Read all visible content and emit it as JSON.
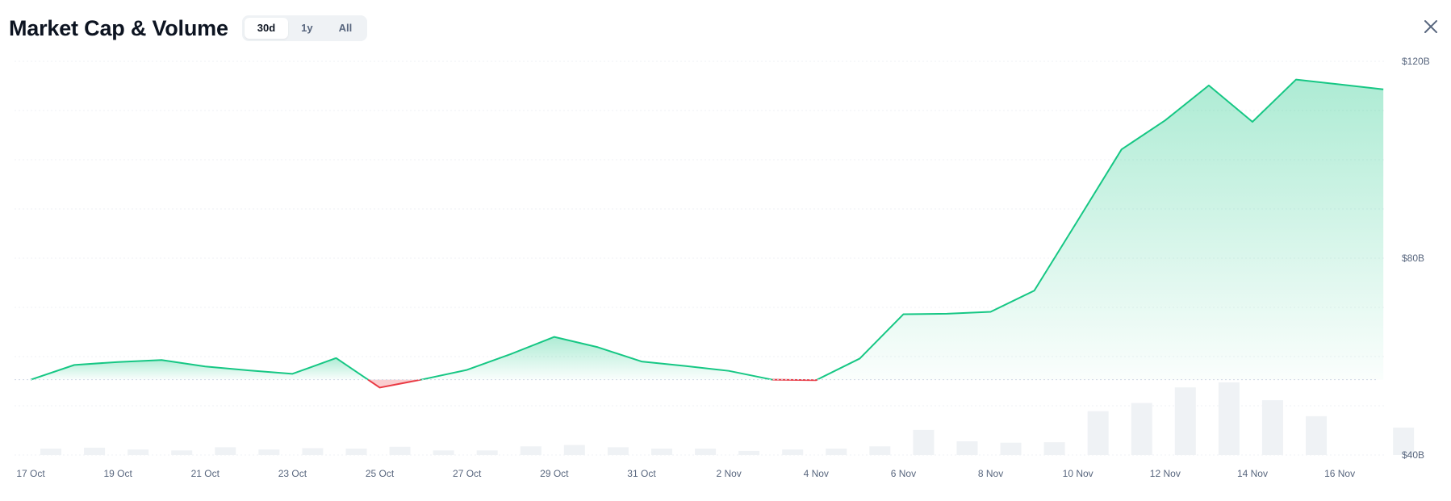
{
  "header": {
    "title": "Market Cap & Volume",
    "tabs": [
      {
        "label": "30d",
        "active": true
      },
      {
        "label": "1y",
        "active": false
      },
      {
        "label": "All",
        "active": false
      }
    ],
    "close_icon": "close-icon"
  },
  "colors": {
    "line_up": "#16c784",
    "line_down": "#ea3943",
    "volume_bar": "#eff2f5",
    "grid": "#eff2f5",
    "axis_text": "#58667e"
  },
  "chart_data": {
    "type": "line",
    "x_ticks": [
      "17 Oct",
      "19 Oct",
      "21 Oct",
      "23 Oct",
      "25 Oct",
      "27 Oct",
      "29 Oct",
      "31 Oct",
      "2 Nov",
      "4 Nov",
      "6 Nov",
      "8 Nov",
      "10 Nov",
      "12 Nov",
      "14 Nov",
      "16 Nov"
    ],
    "y_ticks": [
      "$40B",
      "$80B",
      "$120B"
    ],
    "ylim": [
      40,
      120
    ],
    "y_unit": "$B",
    "baseline": 55.3,
    "grid": true,
    "series": [
      {
        "type": "line",
        "dates": [
          "17 Oct",
          "18 Oct",
          "19 Oct",
          "20 Oct",
          "21 Oct",
          "22 Oct",
          "23 Oct",
          "24 Oct",
          "25 Oct",
          "26 Oct",
          "27 Oct",
          "28 Oct",
          "29 Oct",
          "30 Oct",
          "31 Oct",
          "1 Nov",
          "2 Nov",
          "3 Nov",
          "4 Nov",
          "5 Nov",
          "6 Nov",
          "7 Nov",
          "8 Nov",
          "9 Nov",
          "10 Nov",
          "11 Nov",
          "12 Nov",
          "13 Nov",
          "14 Nov",
          "15 Nov",
          "16 Nov",
          "17 Nov"
        ],
        "values": [
          55.3,
          58.3,
          58.9,
          59.3,
          58.0,
          57.2,
          56.5,
          59.7,
          53.7,
          55.4,
          57.3,
          60.5,
          64.0,
          61.9,
          59.0,
          58.1,
          57.1,
          55.3,
          55.2,
          59.6,
          68.6,
          68.7,
          69.1,
          73.4,
          87.7,
          102.1,
          108.0,
          115.1,
          107.7,
          116.3,
          115.3,
          114.3
        ]
      },
      {
        "type": "bar",
        "name": "Volume",
        "values": [
          1.4,
          1.6,
          1.2,
          1.0,
          1.7,
          1.2,
          1.5,
          1.4,
          1.8,
          1.0,
          1.0,
          1.9,
          2.2,
          1.7,
          1.4,
          1.4,
          0.9,
          1.2,
          1.4,
          1.9,
          5.5,
          3.0,
          2.7,
          2.8,
          9.6,
          11.4,
          14.8,
          15.9,
          12.0,
          8.5,
          0.0,
          6.0
        ]
      }
    ]
  }
}
